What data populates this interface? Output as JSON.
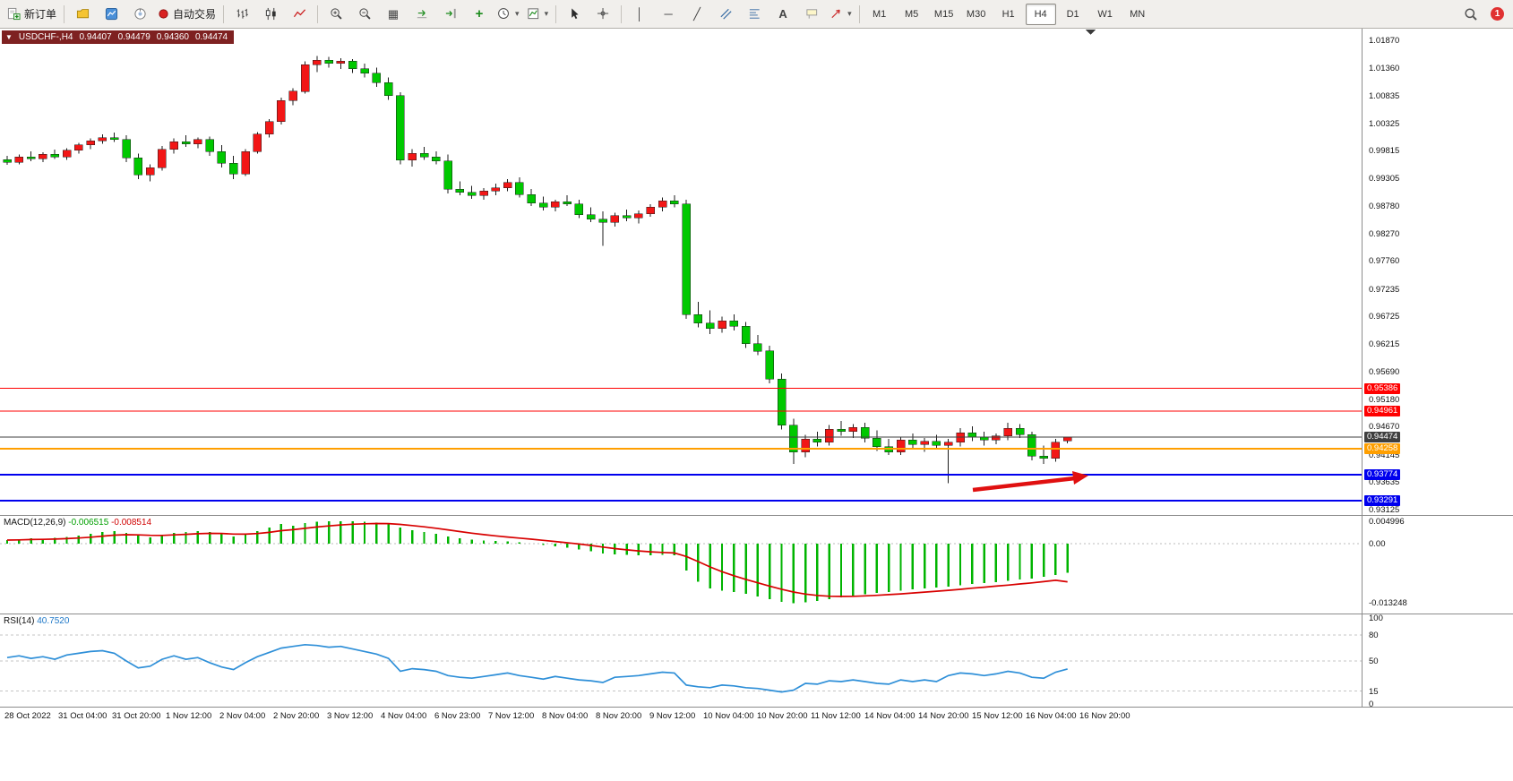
{
  "toolbar": {
    "new_order": "新订单",
    "auto_trading": "自动交易",
    "timeframes": [
      "M1",
      "M5",
      "M15",
      "M30",
      "H1",
      "H4",
      "D1",
      "W1",
      "MN"
    ],
    "active_timeframe": "H4",
    "notification_badge": "1",
    "glyphs": {
      "title_dropdown": "▼",
      "dropdown": "▾",
      "grid": "▦",
      "plus": "+",
      "vertical_line": "│",
      "horizontal_line": "─",
      "trendline": "╱",
      "text_tool": "A"
    }
  },
  "chart_window": {
    "title": "USDCHF-,H4",
    "open": "0.94407",
    "high": "0.94479",
    "low": "0.94360",
    "close": "0.94474"
  },
  "price_axis": {
    "labels": [
      "1.01870",
      "1.01360",
      "1.00835",
      "1.00325",
      "0.99815",
      "0.99305",
      "0.98780",
      "0.98270",
      "0.97760",
      "0.97235",
      "0.96725",
      "0.96215",
      "0.95690",
      "0.95180",
      "0.94670",
      "0.94145",
      "0.93635",
      "0.93125"
    ]
  },
  "price_lines": [
    {
      "label": "0.95386",
      "value": 0.95386,
      "color": "#ff0000",
      "thickness": 1,
      "badge": "#ff0000"
    },
    {
      "label": "0.94961",
      "value": 0.94961,
      "color": "#ff0000",
      "thickness": 1,
      "badge": "#ff0000"
    },
    {
      "label": "0.94474",
      "value": 0.94474,
      "color": "#3f3f3f",
      "thickness": 1,
      "badge": "#3f3f3f"
    },
    {
      "label": "0.94258",
      "value": 0.94258,
      "color": "#ff9f00",
      "thickness": 2,
      "badge": "#ff9f00"
    },
    {
      "label": "0.93774",
      "value": 0.93774,
      "color": "#0000ee",
      "thickness": 2,
      "badge": "#0000ee"
    },
    {
      "label": "0.93291",
      "value": 0.93291,
      "color": "#0000ee",
      "thickness": 2,
      "badge": "#0000ee"
    }
  ],
  "macd_panel": {
    "name": "MACD(12,26,9)",
    "value1": "-0.006515",
    "value2": "-0.008514",
    "scale": [
      {
        "label": "0.004996",
        "value": 0.004996
      },
      {
        "label": "0.00",
        "value": 0
      },
      {
        "label": "-0.013248",
        "value": -0.013248
      }
    ]
  },
  "rsi_panel": {
    "name": "RSI(14)",
    "value": "40.7520",
    "scale": [
      {
        "label": "100",
        "value": 100
      },
      {
        "label": "80",
        "value": 80
      },
      {
        "label": "50",
        "value": 50
      },
      {
        "label": "15",
        "value": 15
      },
      {
        "label": "0",
        "value": 0
      }
    ],
    "levels": [
      80,
      50,
      15
    ]
  },
  "time_axis": [
    "28 Oct 2022",
    "31 Oct 04:00",
    "31 Oct 20:00",
    "1 Nov 12:00",
    "2 Nov 04:00",
    "2 Nov 20:00",
    "3 Nov 12:00",
    "4 Nov 04:00",
    "6 Nov 23:00",
    "7 Nov 12:00",
    "8 Nov 04:00",
    "8 Nov 20:00",
    "9 Nov 12:00",
    "10 Nov 04:00",
    "10 Nov 20:00",
    "11 Nov 12:00",
    "14 Nov 04:00",
    "14 Nov 20:00",
    "15 Nov 12:00",
    "16 Nov 04:00",
    "16 Nov 20:00"
  ],
  "chart_data": {
    "type": "candlestick",
    "symbol": "USDCHF-",
    "period": "H4",
    "title": "USDCHF-,H4",
    "price_range": {
      "top": 1.02087,
      "bottom": 0.93025
    },
    "bull_color": "#f21616",
    "bear_color": "#00c800",
    "wick_color": "#1c1c1c",
    "candles": [
      [
        0.9965,
        0.9972,
        0.9955,
        0.996
      ],
      [
        0.996,
        0.9974,
        0.9956,
        0.997
      ],
      [
        0.997,
        0.998,
        0.9962,
        0.9966
      ],
      [
        0.9966,
        0.9978,
        0.996,
        0.9975
      ],
      [
        0.9975,
        0.9983,
        0.9966,
        0.997
      ],
      [
        0.997,
        0.9986,
        0.9964,
        0.9982
      ],
      [
        0.9982,
        0.9996,
        0.9976,
        0.9992
      ],
      [
        0.9992,
        1.0004,
        0.9984,
        1.0
      ],
      [
        1.0,
        1.0012,
        0.9994,
        1.0006
      ],
      [
        1.0006,
        1.0015,
        0.9998,
        1.0002
      ],
      [
        1.0002,
        1.001,
        0.996,
        0.9968
      ],
      [
        0.9968,
        0.9976,
        0.9928,
        0.9936
      ],
      [
        0.9936,
        0.9956,
        0.9924,
        0.995
      ],
      [
        0.995,
        0.999,
        0.9944,
        0.9984
      ],
      [
        0.9984,
        1.0004,
        0.9976,
        0.9998
      ],
      [
        0.9998,
        1.001,
        0.9988,
        0.9994
      ],
      [
        0.9994,
        1.0006,
        0.9986,
        1.0002
      ],
      [
        1.0002,
        1.0008,
        0.9972,
        0.998
      ],
      [
        0.998,
        0.9992,
        0.995,
        0.9958
      ],
      [
        0.9958,
        0.9972,
        0.9928,
        0.9938
      ],
      [
        0.9938,
        0.9984,
        0.9934,
        0.998
      ],
      [
        0.998,
        1.0016,
        0.9976,
        1.0012
      ],
      [
        1.0012,
        1.004,
        1.0006,
        1.0036
      ],
      [
        1.0036,
        1.008,
        1.003,
        1.0075
      ],
      [
        1.0075,
        1.0098,
        1.0066,
        1.0092
      ],
      [
        1.0092,
        1.0148,
        1.0088,
        1.0142
      ],
      [
        1.0142,
        1.0158,
        1.0128,
        1.015
      ],
      [
        1.015,
        1.0156,
        1.0136,
        1.0144
      ],
      [
        1.0144,
        1.0154,
        1.0134,
        1.0148
      ],
      [
        1.0148,
        1.0152,
        1.0126,
        1.0134
      ],
      [
        1.0134,
        1.0144,
        1.0118,
        1.0126
      ],
      [
        1.0126,
        1.0136,
        1.01,
        1.0108
      ],
      [
        1.0108,
        1.0118,
        1.0076,
        1.0084
      ],
      [
        1.0084,
        1.009,
        0.9956,
        0.9964
      ],
      [
        0.9964,
        0.9984,
        0.9952,
        0.9976
      ],
      [
        0.9976,
        0.9988,
        0.9964,
        0.997
      ],
      [
        0.997,
        0.998,
        0.9956,
        0.9962
      ],
      [
        0.9962,
        0.9974,
        0.9902,
        0.991
      ],
      [
        0.991,
        0.9924,
        0.9898,
        0.9904
      ],
      [
        0.9904,
        0.9916,
        0.9892,
        0.9898
      ],
      [
        0.9898,
        0.9912,
        0.989,
        0.9906
      ],
      [
        0.9906,
        0.992,
        0.9898,
        0.9912
      ],
      [
        0.9912,
        0.9928,
        0.9906,
        0.9922
      ],
      [
        0.9922,
        0.9932,
        0.9894,
        0.99
      ],
      [
        0.99,
        0.991,
        0.9878,
        0.9884
      ],
      [
        0.9884,
        0.9896,
        0.987,
        0.9876
      ],
      [
        0.9876,
        0.989,
        0.9868,
        0.9886
      ],
      [
        0.9886,
        0.9898,
        0.9878,
        0.9882
      ],
      [
        0.9882,
        0.989,
        0.9856,
        0.9862
      ],
      [
        0.9862,
        0.9876,
        0.9848,
        0.9854
      ],
      [
        0.9854,
        0.9868,
        0.9804,
        0.9848
      ],
      [
        0.9848,
        0.9866,
        0.984,
        0.986
      ],
      [
        0.986,
        0.9872,
        0.985,
        0.9856
      ],
      [
        0.9856,
        0.987,
        0.9846,
        0.9864
      ],
      [
        0.9864,
        0.9882,
        0.9858,
        0.9876
      ],
      [
        0.9876,
        0.9894,
        0.9868,
        0.9888
      ],
      [
        0.9888,
        0.9898,
        0.9876,
        0.9882
      ],
      [
        0.9882,
        0.989,
        0.9668,
        0.9676
      ],
      [
        0.9676,
        0.97,
        0.9652,
        0.966
      ],
      [
        0.966,
        0.9684,
        0.964,
        0.965
      ],
      [
        0.965,
        0.9672,
        0.9642,
        0.9664
      ],
      [
        0.9664,
        0.9676,
        0.9646,
        0.9654
      ],
      [
        0.9654,
        0.9662,
        0.9614,
        0.9622
      ],
      [
        0.9622,
        0.9638,
        0.96,
        0.9608
      ],
      [
        0.9608,
        0.9618,
        0.9548,
        0.9556
      ],
      [
        0.9556,
        0.9566,
        0.9462,
        0.947
      ],
      [
        0.947,
        0.9482,
        0.9398,
        0.942
      ],
      [
        0.942,
        0.9452,
        0.941,
        0.9444
      ],
      [
        0.9444,
        0.9458,
        0.943,
        0.9438
      ],
      [
        0.9438,
        0.947,
        0.9432,
        0.9462
      ],
      [
        0.9462,
        0.9478,
        0.945,
        0.9458
      ],
      [
        0.9458,
        0.9472,
        0.9446,
        0.9466
      ],
      [
        0.9466,
        0.9474,
        0.9438,
        0.9446
      ],
      [
        0.9446,
        0.946,
        0.9422,
        0.943
      ],
      [
        0.943,
        0.9444,
        0.9414,
        0.942
      ],
      [
        0.942,
        0.9448,
        0.9414,
        0.9442
      ],
      [
        0.9442,
        0.9454,
        0.9428,
        0.9434
      ],
      [
        0.9434,
        0.9446,
        0.942,
        0.944
      ],
      [
        0.944,
        0.9452,
        0.9426,
        0.9432
      ],
      [
        0.9432,
        0.9444,
        0.9362,
        0.9438
      ],
      [
        0.9438,
        0.9464,
        0.943,
        0.9456
      ],
      [
        0.9456,
        0.9468,
        0.944,
        0.9448
      ],
      [
        0.9448,
        0.9458,
        0.9432,
        0.9442
      ],
      [
        0.9442,
        0.9454,
        0.9434,
        0.945
      ],
      [
        0.945,
        0.9474,
        0.9442,
        0.9464
      ],
      [
        0.9464,
        0.9472,
        0.9446,
        0.9452
      ],
      [
        0.9452,
        0.9458,
        0.9404,
        0.9412
      ],
      [
        0.9412,
        0.9432,
        0.9398,
        0.9408
      ],
      [
        0.9408,
        0.9444,
        0.9402,
        0.9438
      ],
      [
        0.94407,
        0.94479,
        0.9436,
        0.94474
      ]
    ],
    "macd": {
      "histogram_color": "#00b400",
      "signal_color": "#d80000",
      "range": {
        "top": 0.0062,
        "bottom": -0.0158
      },
      "histogram": [
        0.0008,
        0.001,
        0.0012,
        0.0011,
        0.0013,
        0.0015,
        0.0018,
        0.0022,
        0.0026,
        0.0028,
        0.0024,
        0.0018,
        0.0014,
        0.0018,
        0.0024,
        0.0026,
        0.0028,
        0.0026,
        0.0022,
        0.0016,
        0.002,
        0.0028,
        0.0036,
        0.0044,
        0.004,
        0.0046,
        0.0049,
        0.00495,
        0.004996,
        0.00496,
        0.00488,
        0.0047,
        0.0044,
        0.0036,
        0.003,
        0.0026,
        0.0022,
        0.0016,
        0.0012,
        0.0009,
        0.0007,
        0.0006,
        0.0005,
        0.0003,
        0.0,
        -0.0003,
        -0.0006,
        -0.0009,
        -0.0013,
        -0.0017,
        -0.0022,
        -0.0024,
        -0.0025,
        -0.0026,
        -0.0026,
        -0.0025,
        -0.0026,
        -0.006,
        -0.0085,
        -0.01,
        -0.0105,
        -0.0108,
        -0.0112,
        -0.0118,
        -0.0124,
        -0.013,
        -0.013248,
        -0.0131,
        -0.0128,
        -0.0124,
        -0.012,
        -0.0116,
        -0.0113,
        -0.011,
        -0.0108,
        -0.0105,
        -0.0102,
        -0.01,
        -0.0098,
        -0.0096,
        -0.0093,
        -0.009,
        -0.0088,
        -0.0086,
        -0.0083,
        -0.008,
        -0.0078,
        -0.0074,
        -0.007,
        -0.006515
      ],
      "signal": [
        0.0008,
        0.00084,
        0.00091,
        0.00095,
        0.00102,
        0.00112,
        0.00125,
        0.00144,
        0.00167,
        0.0019,
        0.002,
        0.00196,
        0.00185,
        0.00184,
        0.00195,
        0.00208,
        0.00222,
        0.0023,
        0.00228,
        0.00214,
        0.00211,
        0.00225,
        0.00252,
        0.0029,
        0.00312,
        0.00341,
        0.00371,
        0.00396,
        0.00417,
        0.00433,
        0.00444,
        0.00449,
        0.00447,
        0.0043,
        0.00404,
        0.00375,
        0.00344,
        0.00307,
        0.0027,
        0.00234,
        0.00201,
        0.00173,
        0.00148,
        0.00124,
        0.00099,
        0.00073,
        0.00047,
        0.00019,
        -7e-05,
        -0.0004,
        -0.00076,
        -0.00109,
        -0.00137,
        -0.00162,
        -0.00181,
        -0.00195,
        -0.00208,
        -0.00286,
        -0.00399,
        -0.00519,
        -0.00625,
        -0.00716,
        -0.00797,
        -0.00874,
        -0.00947,
        -0.01018,
        -0.01079,
        -0.01125,
        -0.01156,
        -0.01173,
        -0.01178,
        -0.01175,
        -0.01166,
        -0.01153,
        -0.01138,
        -0.01121,
        -0.01101,
        -0.01081,
        -0.01061,
        -0.01041,
        -0.01019,
        -0.00993,
        -0.00971,
        -0.00948,
        -0.00925,
        -0.009,
        -0.00876,
        -0.00848,
        -0.00818,
        -0.008514
      ]
    },
    "rsi": {
      "color": "#2e8fd8",
      "range": [
        0,
        100
      ],
      "values": [
        54,
        56,
        53,
        55,
        52,
        57,
        59,
        61,
        62,
        59,
        50,
        42,
        44,
        52,
        56,
        52,
        54,
        48,
        43,
        40,
        48,
        55,
        60,
        65,
        67,
        69,
        68,
        66,
        67,
        64,
        61,
        58,
        53,
        38,
        41,
        40,
        38,
        33,
        31,
        30,
        32,
        34,
        36,
        33,
        31,
        29,
        32,
        30,
        28,
        27,
        25,
        31,
        32,
        33,
        35,
        37,
        36,
        22,
        20,
        19,
        22,
        21,
        19,
        18,
        16,
        14,
        16,
        24,
        23,
        27,
        26,
        28,
        26,
        24,
        23,
        28,
        26,
        28,
        26,
        33,
        36,
        35,
        33,
        35,
        38,
        36,
        31,
        30,
        37,
        40.75
      ]
    },
    "annotations": {
      "arrow": {
        "color": "#e01010",
        "from_price": 0.936,
        "to_price": 0.93774,
        "direction": "right"
      }
    }
  }
}
